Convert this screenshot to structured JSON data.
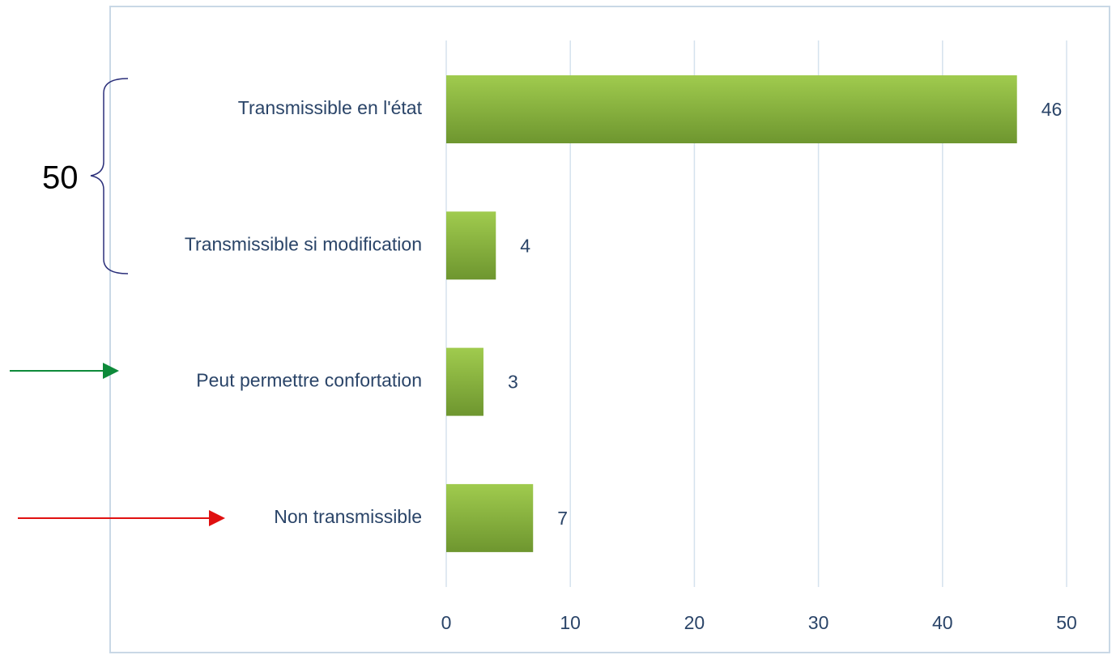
{
  "chart_data": {
    "type": "bar",
    "orientation": "horizontal",
    "categories": [
      "Transmissible en l'état",
      "Transmissible si modification",
      "Peut permettre confortation",
      "Non transmissible"
    ],
    "values": [
      46,
      4,
      3,
      7
    ],
    "color": "#8ab83f",
    "xlim": [
      0,
      50
    ],
    "xticks": [
      0,
      10,
      20,
      30,
      40,
      50
    ],
    "grid": true,
    "annotation": "50"
  }
}
